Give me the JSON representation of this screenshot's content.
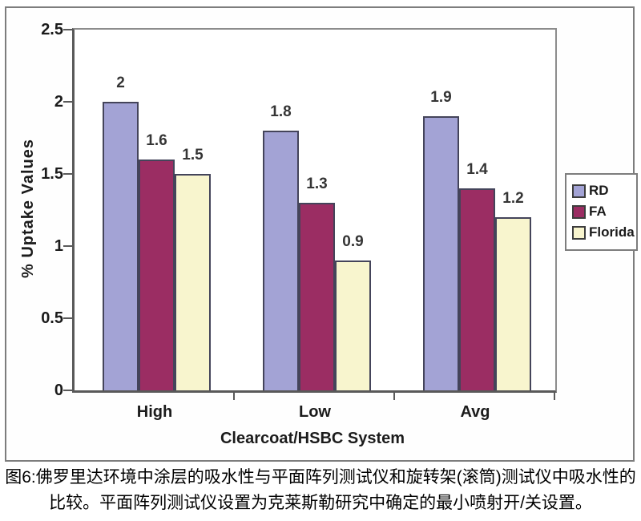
{
  "figure": {
    "caption_line1": "图6:佛罗里达环境中涂层的吸水性与平面阵列测试仪和旋转架(滚筒)测试仪中吸水性的",
    "caption_line2": "比较。平面阵列测试仪设置为克莱斯勒研究中确定的最小喷射开/关设置。"
  },
  "chart_data": {
    "type": "bar",
    "title": "",
    "categories": [
      "High",
      "Low",
      "Avg"
    ],
    "series": [
      {
        "name": "RD",
        "color": "#A3A3D5",
        "values": [
          2,
          1.8,
          1.9
        ]
      },
      {
        "name": "FA",
        "color": "#9B2D63",
        "values": [
          1.6,
          1.3,
          1.4
        ]
      },
      {
        "name": "Florida",
        "color": "#F8F5CE",
        "values": [
          1.5,
          0.9,
          1.2
        ]
      }
    ],
    "xlabel": "Clearcoat/HSBC System",
    "ylabel": "% Uptake Values",
    "ylim": [
      0,
      2.5
    ],
    "yticks": [
      "0",
      "0.5",
      "1",
      "1.5",
      "2",
      "2.5"
    ],
    "grid": false,
    "legend_position": "right",
    "data_labels": true
  }
}
